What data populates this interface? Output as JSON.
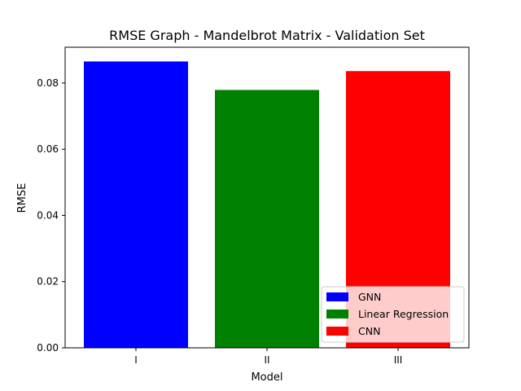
{
  "chart_data": {
    "type": "bar",
    "title": "RMSE Graph - Mandelbrot Matrix - Validation Set",
    "xlabel": "Model",
    "ylabel": "RMSE",
    "categories": [
      "I",
      "II",
      "III"
    ],
    "series": [
      {
        "name": "GNN",
        "values": [
          0.0865,
          null,
          null
        ],
        "color": "#0000ff"
      },
      {
        "name": "Linear Regression",
        "values": [
          null,
          0.0779,
          null
        ],
        "color": "#008000"
      },
      {
        "name": "CNN",
        "values": [
          null,
          null,
          0.0836
        ],
        "color": "#ff0000"
      }
    ],
    "ylim": [
      0,
      0.0908
    ],
    "yticks": [
      {
        "value": 0.0,
        "label": "0.00"
      },
      {
        "value": 0.02,
        "label": "0.02"
      },
      {
        "value": 0.04,
        "label": "0.04"
      },
      {
        "value": 0.06,
        "label": "0.06"
      },
      {
        "value": 0.08,
        "label": "0.08"
      }
    ],
    "grid": false,
    "legend_position": "lower-right"
  }
}
